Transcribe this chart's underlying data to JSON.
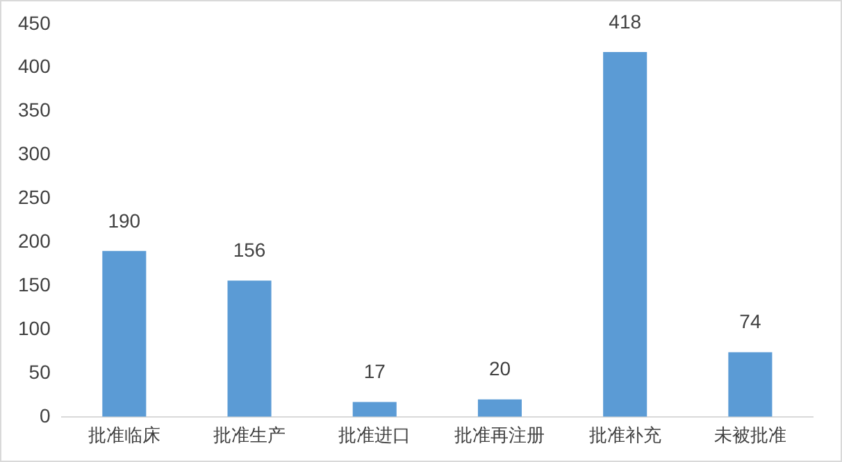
{
  "chart_data": {
    "type": "bar",
    "categories": [
      "批准临床",
      "批准生产",
      "批准进口",
      "批准再注册",
      "批准补充",
      "未被批准"
    ],
    "values": [
      190,
      156,
      17,
      20,
      418,
      74
    ],
    "color": "#5b9bd5",
    "ylim": [
      0,
      450
    ],
    "yticks": [
      0,
      50,
      100,
      150,
      200,
      250,
      300,
      350,
      400,
      450
    ],
    "data_labels": true,
    "grid": false,
    "legend": false
  }
}
